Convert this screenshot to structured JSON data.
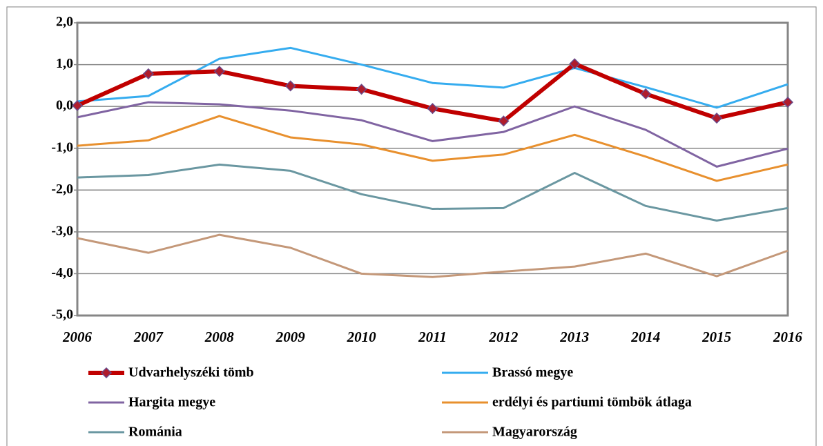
{
  "chart_data": {
    "type": "line",
    "categories": [
      "2006",
      "2007",
      "2008",
      "2009",
      "2010",
      "2011",
      "2012",
      "2013",
      "2014",
      "2015",
      "2016"
    ],
    "series": [
      {
        "name": "Udvarhelyszéki tömb",
        "color": "#c00000",
        "marker": "diamond",
        "marker_color": "#b01c2c",
        "values": [
          0.02,
          0.78,
          0.84,
          0.49,
          0.41,
          -0.05,
          -0.35,
          1.02,
          0.3,
          -0.28,
          0.1
        ]
      },
      {
        "name": "Brassó megye",
        "color": "#35acef",
        "values": [
          0.12,
          0.25,
          1.14,
          1.4,
          1.0,
          0.56,
          0.45,
          0.92,
          0.46,
          -0.03,
          0.53
        ]
      },
      {
        "name": "Hargita megye",
        "color": "#8064a2",
        "values": [
          -0.26,
          0.1,
          0.05,
          -0.1,
          -0.33,
          -0.83,
          -0.61,
          0.0,
          -0.56,
          -1.44,
          -1.01
        ]
      },
      {
        "name": "erdélyi és partiumi tömbök átlaga",
        "color": "#e8902e",
        "values": [
          -0.94,
          -0.81,
          -0.23,
          -0.74,
          -0.91,
          -1.3,
          -1.15,
          -0.68,
          -1.2,
          -1.78,
          -1.39
        ]
      },
      {
        "name": "Románia",
        "color": "#6a97a1",
        "values": [
          -1.7,
          -1.64,
          -1.39,
          -1.54,
          -2.1,
          -2.45,
          -2.43,
          -1.59,
          -2.38,
          -2.73,
          -2.43
        ]
      },
      {
        "name": "Magyarország",
        "color": "#c49879",
        "values": [
          -3.15,
          -3.5,
          -3.07,
          -3.38,
          -4.0,
          -4.08,
          -3.95,
          -3.83,
          -3.52,
          -4.06,
          -3.45
        ]
      }
    ],
    "ylim": [
      -5,
      2
    ],
    "yticks": [
      {
        "value": -5,
        "label": "-5,0"
      },
      {
        "value": -4,
        "label": "-4,0"
      },
      {
        "value": -3,
        "label": "-3,0"
      },
      {
        "value": -2,
        "label": "-2,0"
      },
      {
        "value": -1,
        "label": "-1,0"
      },
      {
        "value": 0,
        "label": "0,0"
      },
      {
        "value": 1,
        "label": "1,0"
      },
      {
        "value": 2,
        "label": "2,0"
      }
    ],
    "grid": true,
    "legend": "bottom"
  }
}
